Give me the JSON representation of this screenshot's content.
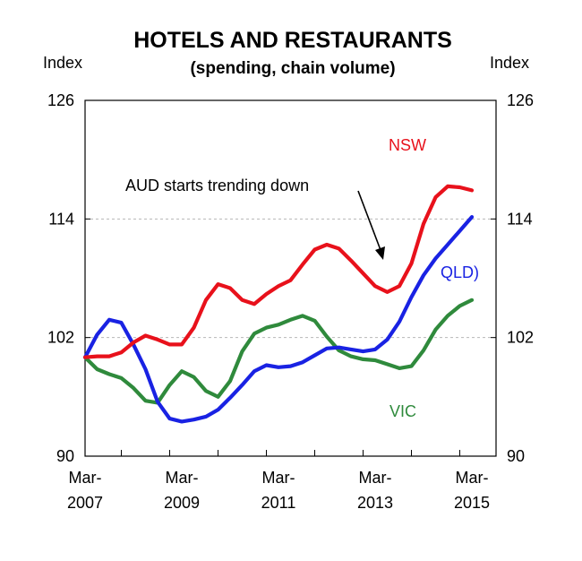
{
  "chart_data": {
    "type": "line",
    "title": "HOTELS AND RESTAURANTS",
    "subtitle": "(spending, chain volume)",
    "ylabel_left": "Index",
    "ylabel_right": "Index",
    "ylim": [
      90,
      126
    ],
    "yticks": [
      90,
      102,
      114,
      126
    ],
    "yticks_labels": [
      "90",
      "102",
      "114",
      "126"
    ],
    "xlim": [
      2007.25,
      2015.75
    ],
    "xticks": [
      {
        "value": 2007.25,
        "line1": "Mar-",
        "line2": "2007"
      },
      {
        "value": 2009.25,
        "line1": "Mar-",
        "line2": "2009"
      },
      {
        "value": 2011.25,
        "line1": "Mar-",
        "line2": "2011"
      },
      {
        "value": 2013.25,
        "line1": "Mar-",
        "line2": "2013"
      },
      {
        "value": 2015.25,
        "line1": "Mar-",
        "line2": "2015"
      }
    ],
    "grid": true,
    "series": [
      {
        "name": "NSW",
        "color": "#e8111b",
        "x": [
          2007.25,
          2007.5,
          2007.75,
          2008.0,
          2008.25,
          2008.5,
          2008.75,
          2009.0,
          2009.25,
          2009.5,
          2009.75,
          2010.0,
          2010.25,
          2010.5,
          2010.75,
          2011.0,
          2011.25,
          2011.5,
          2011.75,
          2012.0,
          2012.25,
          2012.5,
          2012.75,
          2013.0,
          2013.25,
          2013.5,
          2013.75,
          2014.0,
          2014.25,
          2014.5,
          2014.75,
          2015.0,
          2015.25
        ],
        "y": [
          100.0,
          100.1,
          100.1,
          100.5,
          101.5,
          102.2,
          101.8,
          101.3,
          101.3,
          103.0,
          105.8,
          107.4,
          107.0,
          105.8,
          105.4,
          106.4,
          107.2,
          107.8,
          109.4,
          110.9,
          111.4,
          111.0,
          109.8,
          108.5,
          107.2,
          106.6,
          107.2,
          109.5,
          113.5,
          116.2,
          117.3,
          117.2,
          116.9
        ]
      },
      {
        "name": "QLD",
        "color": "#1922e3",
        "x": [
          2007.25,
          2007.5,
          2007.75,
          2008.0,
          2008.25,
          2008.5,
          2008.75,
          2009.0,
          2009.25,
          2009.5,
          2009.75,
          2010.0,
          2010.25,
          2010.5,
          2010.75,
          2011.0,
          2011.25,
          2011.5,
          2011.75,
          2012.0,
          2012.25,
          2012.5,
          2012.75,
          2013.0,
          2013.25,
          2013.5,
          2013.75,
          2014.0,
          2014.25,
          2014.5,
          2014.75,
          2015.0,
          2015.25
        ],
        "y": [
          100.0,
          102.3,
          103.8,
          103.5,
          101.3,
          98.8,
          95.5,
          93.8,
          93.5,
          93.7,
          94.0,
          94.7,
          95.9,
          97.2,
          98.6,
          99.2,
          99.0,
          99.1,
          99.5,
          100.2,
          100.9,
          101.0,
          100.8,
          100.6,
          100.8,
          101.8,
          103.6,
          106.1,
          108.3,
          110.0,
          111.4,
          112.8,
          114.2
        ]
      },
      {
        "name": "VIC",
        "color": "#2f8a3c",
        "x": [
          2007.25,
          2007.5,
          2007.75,
          2008.0,
          2008.25,
          2008.5,
          2008.75,
          2009.0,
          2009.25,
          2009.5,
          2009.75,
          2010.0,
          2010.25,
          2010.5,
          2010.75,
          2011.0,
          2011.25,
          2011.5,
          2011.75,
          2012.0,
          2012.25,
          2012.5,
          2012.75,
          2013.0,
          2013.25,
          2013.5,
          2013.75,
          2014.0,
          2014.25,
          2014.5,
          2014.75,
          2015.0,
          2015.25
        ],
        "y": [
          100.0,
          98.8,
          98.3,
          97.9,
          96.9,
          95.6,
          95.4,
          97.2,
          98.6,
          98.0,
          96.6,
          96.0,
          97.6,
          100.6,
          102.4,
          103.0,
          103.3,
          103.8,
          104.2,
          103.7,
          102.1,
          100.7,
          100.1,
          99.8,
          99.7,
          99.3,
          98.9,
          99.1,
          100.7,
          102.8,
          104.2,
          105.2,
          105.8
        ]
      }
    ],
    "labels": {
      "nsw": "NSW",
      "qld": "QLD)",
      "vic": "VIC"
    },
    "annotation": {
      "text": "AUD starts trending down"
    }
  }
}
